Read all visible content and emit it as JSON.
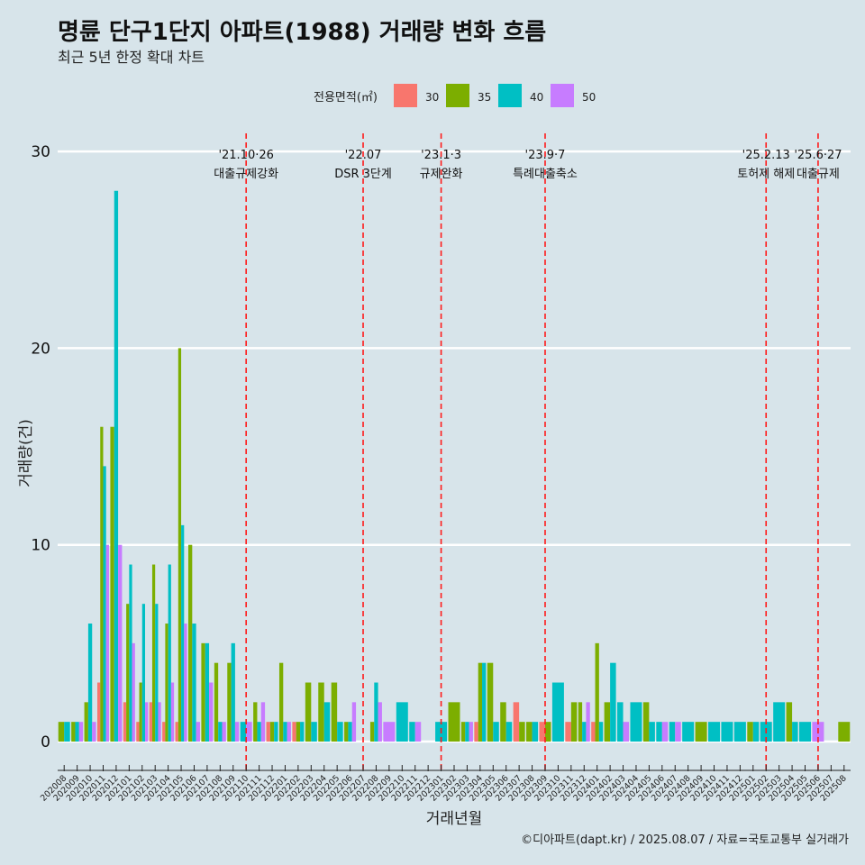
{
  "title": "명륜 단구1단지 아파트(1988) 거래량 변화 흐름",
  "subtitle": "최근 5년 한정 확대 차트",
  "caption": "©디아파트(dapt.kr) / 2025.08.07 / 자료=국토교통부 실거래가",
  "chart_data": {
    "type": "bar",
    "xlabel": "거래년월",
    "ylabel": "거래량(건)",
    "ylim": [
      -1.5,
      31
    ],
    "yticks": [
      0,
      10,
      20,
      30
    ],
    "grid": true,
    "legend": {
      "title": "전용면적(㎡)",
      "position": "top"
    },
    "categories": [
      "202008",
      "202009",
      "202010",
      "202011",
      "202012",
      "202101",
      "202102",
      "202103",
      "202104",
      "202105",
      "202106",
      "202107",
      "202108",
      "202109",
      "202110",
      "202111",
      "202112",
      "202201",
      "202202",
      "202203",
      "202204",
      "202205",
      "202206",
      "202207",
      "202208",
      "202209",
      "202210",
      "202211",
      "202212",
      "202301",
      "202302",
      "202303",
      "202304",
      "202305",
      "202306",
      "202307",
      "202308",
      "202309",
      "202310",
      "202311",
      "202312",
      "202401",
      "202402",
      "202403",
      "202404",
      "202405",
      "202406",
      "202407",
      "202408",
      "202409",
      "202410",
      "202411",
      "202412",
      "202501",
      "202502",
      "202503",
      "202504",
      "202505",
      "202506",
      "202507",
      "202508"
    ],
    "series": [
      {
        "name": "30",
        "color": "#f8766d",
        "values": [
          0,
          0,
          0,
          3,
          0,
          2,
          1,
          2,
          1,
          1,
          0,
          0,
          0,
          0,
          0,
          0,
          1,
          0,
          1,
          0,
          0,
          0,
          0,
          0,
          0,
          0,
          0,
          0,
          0,
          0,
          0,
          0,
          1,
          0,
          0,
          2,
          0,
          1,
          0,
          1,
          0,
          1,
          0,
          0,
          0,
          0,
          0,
          0,
          0,
          0,
          0,
          0,
          0,
          0,
          0,
          0,
          0,
          0,
          0,
          0,
          0
        ]
      },
      {
        "name": "35",
        "color": "#7cae00",
        "values": [
          1,
          1,
          2,
          16,
          16,
          7,
          3,
          9,
          6,
          20,
          10,
          5,
          4,
          4,
          0,
          2,
          1,
          4,
          1,
          3,
          3,
          3,
          1,
          0,
          1,
          0,
          0,
          0,
          0,
          0,
          2,
          1,
          4,
          4,
          2,
          1,
          1,
          1,
          0,
          2,
          2,
          5,
          2,
          0,
          0,
          2,
          0,
          0,
          0,
          1,
          0,
          0,
          0,
          1,
          0,
          0,
          2,
          0,
          0,
          0,
          1
        ]
      },
      {
        "name": "40",
        "color": "#00bfc4",
        "values": [
          1,
          1,
          6,
          14,
          28,
          9,
          7,
          7,
          9,
          11,
          6,
          5,
          1,
          5,
          1,
          1,
          1,
          1,
          1,
          1,
          2,
          1,
          1,
          0,
          3,
          0,
          2,
          1,
          0,
          1,
          0,
          1,
          4,
          1,
          1,
          0,
          1,
          0,
          3,
          0,
          1,
          1,
          4,
          2,
          2,
          1,
          1,
          1,
          1,
          0,
          1,
          1,
          1,
          1,
          1,
          2,
          1,
          1,
          0,
          0,
          0
        ]
      },
      {
        "name": "50",
        "color": "#c77cff",
        "values": [
          0,
          1,
          1,
          10,
          10,
          5,
          2,
          2,
          3,
          6,
          1,
          3,
          1,
          1,
          1,
          2,
          0,
          1,
          0,
          0,
          0,
          0,
          2,
          0,
          2,
          1,
          0,
          1,
          0,
          0,
          0,
          1,
          0,
          0,
          0,
          0,
          0,
          0,
          0,
          0,
          2,
          0,
          0,
          1,
          0,
          0,
          1,
          1,
          0,
          0,
          0,
          0,
          0,
          0,
          0,
          0,
          0,
          0,
          1,
          0,
          0
        ]
      }
    ],
    "events": [
      {
        "date": "'21.10·26",
        "label": "대출규제강화",
        "at": "202110"
      },
      {
        "date": "'22.07",
        "label": "DSR 3단계",
        "at": "202207"
      },
      {
        "date": "'23.1·3",
        "label": "규제완화",
        "at": "202301"
      },
      {
        "date": "'23.9·7",
        "label": "특례대출축소",
        "at": "202309"
      },
      {
        "date": "'25.2.13",
        "label": "토허제 해제",
        "at": "202502"
      },
      {
        "date": "'25.6·27",
        "label": "대출규제",
        "at": "202506"
      }
    ]
  }
}
